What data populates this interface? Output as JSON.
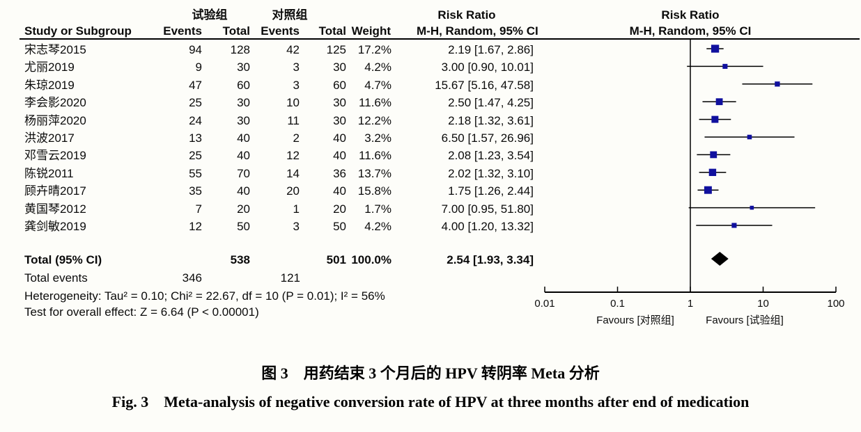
{
  "header": {
    "group_exp": "试验组",
    "group_ctl": "对照组",
    "risk_ratio": "Risk Ratio",
    "method": "M-H, Random, 95% CI",
    "study": "Study or Subgroup",
    "events": "Events",
    "total": "Total",
    "weight": "Weight"
  },
  "chart_data": {
    "type": "forest",
    "effect_measure": "Risk Ratio",
    "method": "M-H, Random, 95% CI",
    "x_axis": {
      "scale": "log",
      "ticks": [
        0.01,
        0.1,
        1,
        10,
        100
      ],
      "min": 0.01,
      "max": 100
    },
    "studies": [
      {
        "name": "宋志琴2015",
        "events_exp": 94,
        "total_exp": 128,
        "events_ctl": 42,
        "total_ctl": 125,
        "weight": "17.2%",
        "rr": 2.19,
        "ci_low": 1.67,
        "ci_high": 2.86,
        "ci_text": "2.19 [1.67, 2.86]"
      },
      {
        "name": "尤丽2019",
        "events_exp": 9,
        "total_exp": 30,
        "events_ctl": 3,
        "total_ctl": 30,
        "weight": "4.2%",
        "rr": 3.0,
        "ci_low": 0.9,
        "ci_high": 10.01,
        "ci_text": "3.00 [0.90, 10.01]"
      },
      {
        "name": "朱琼2019",
        "events_exp": 47,
        "total_exp": 60,
        "events_ctl": 3,
        "total_ctl": 60,
        "weight": "4.7%",
        "rr": 15.67,
        "ci_low": 5.16,
        "ci_high": 47.58,
        "ci_text": "15.67 [5.16, 47.58]"
      },
      {
        "name": "李会影2020",
        "events_exp": 25,
        "total_exp": 30,
        "events_ctl": 10,
        "total_ctl": 30,
        "weight": "11.6%",
        "rr": 2.5,
        "ci_low": 1.47,
        "ci_high": 4.25,
        "ci_text": "2.50 [1.47, 4.25]"
      },
      {
        "name": "杨丽萍2020",
        "events_exp": 24,
        "total_exp": 30,
        "events_ctl": 11,
        "total_ctl": 30,
        "weight": "12.2%",
        "rr": 2.18,
        "ci_low": 1.32,
        "ci_high": 3.61,
        "ci_text": "2.18 [1.32, 3.61]"
      },
      {
        "name": "洪波2017",
        "events_exp": 13,
        "total_exp": 40,
        "events_ctl": 2,
        "total_ctl": 40,
        "weight": "3.2%",
        "rr": 6.5,
        "ci_low": 1.57,
        "ci_high": 26.96,
        "ci_text": "6.50 [1.57, 26.96]"
      },
      {
        "name": "邓雪云2019",
        "events_exp": 25,
        "total_exp": 40,
        "events_ctl": 12,
        "total_ctl": 40,
        "weight": "11.6%",
        "rr": 2.08,
        "ci_low": 1.23,
        "ci_high": 3.54,
        "ci_text": "2.08 [1.23, 3.54]"
      },
      {
        "name": "陈锐2011",
        "events_exp": 55,
        "total_exp": 70,
        "events_ctl": 14,
        "total_ctl": 36,
        "weight": "13.7%",
        "rr": 2.02,
        "ci_low": 1.32,
        "ci_high": 3.1,
        "ci_text": "2.02 [1.32, 3.10]"
      },
      {
        "name": "顾卉晴2017",
        "events_exp": 35,
        "total_exp": 40,
        "events_ctl": 20,
        "total_ctl": 40,
        "weight": "15.8%",
        "rr": 1.75,
        "ci_low": 1.26,
        "ci_high": 2.44,
        "ci_text": "1.75 [1.26, 2.44]"
      },
      {
        "name": "黄国琴2012",
        "events_exp": 7,
        "total_exp": 20,
        "events_ctl": 1,
        "total_ctl": 20,
        "weight": "1.7%",
        "rr": 7.0,
        "ci_low": 0.95,
        "ci_high": 51.8,
        "ci_text": "7.00 [0.95, 51.80]"
      },
      {
        "name": "龚剑敏2019",
        "events_exp": 12,
        "total_exp": 50,
        "events_ctl": 3,
        "total_ctl": 50,
        "weight": "4.2%",
        "rr": 4.0,
        "ci_low": 1.2,
        "ci_high": 13.32,
        "ci_text": "4.00 [1.20, 13.32]"
      }
    ],
    "total": {
      "label": "Total (95% CI)",
      "total_exp": "538",
      "total_ctl": "501",
      "weight": "100.0%",
      "rr": 2.54,
      "ci_low": 1.93,
      "ci_high": 3.34,
      "ci_text": "2.54 [1.93, 3.34]"
    },
    "total_events": {
      "label": "Total events",
      "exp": "346",
      "ctl": "121"
    },
    "heterogeneity": "Heterogeneity: Tau² = 0.10; Chi² = 22.67, df = 10 (P = 0.01); I² = 56%",
    "overall_effect": "Test for overall effect: Z = 6.64 (P < 0.00001)",
    "favours_left": "Favours [对照组]",
    "favours_right": "Favours [试验组]"
  },
  "colors": {
    "marker": "#10109e",
    "line": "#000000",
    "diamond": "#000000"
  },
  "caption": {
    "chinese": "图 3　用药结束 3 个月后的 HPV 转阴率 Meta 分析",
    "english": "Fig. 3　Meta-analysis of negative conversion rate of HPV at three months after end of medication"
  }
}
